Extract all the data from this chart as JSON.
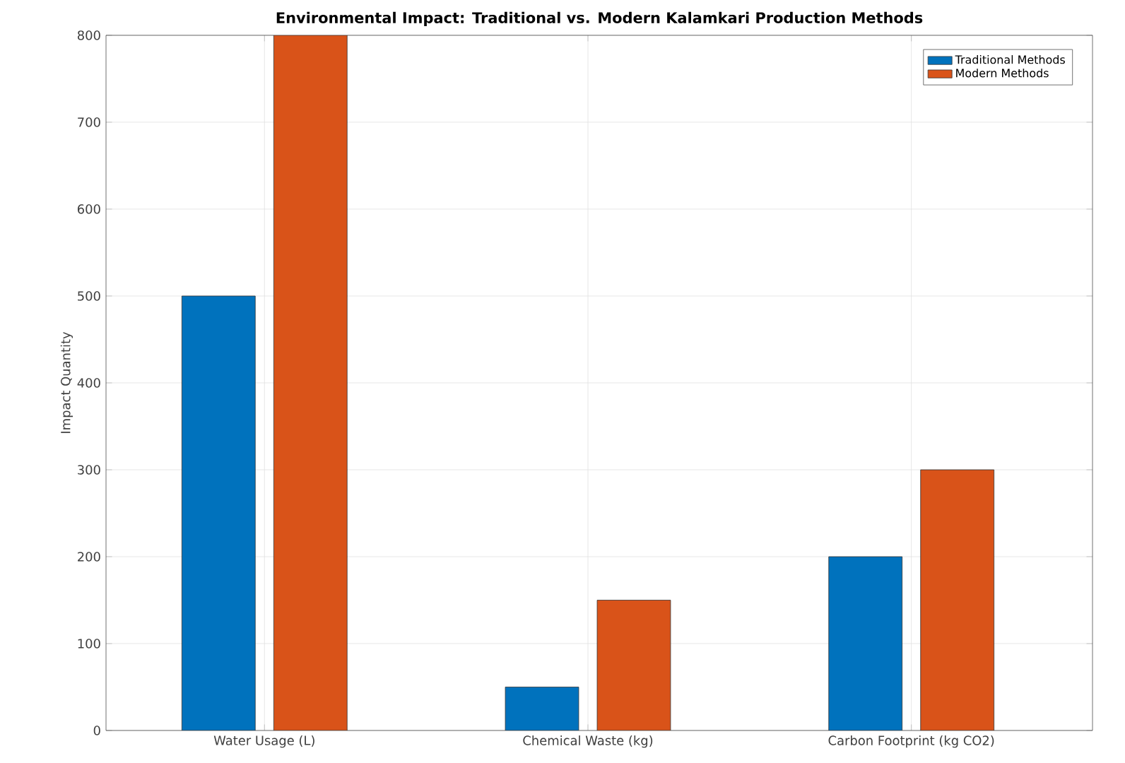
{
  "chart_data": {
    "type": "bar",
    "title": "Environmental Impact: Traditional vs. Modern Kalamkari Production Methods",
    "ylabel": "Impact Quantity",
    "categories": [
      "Water Usage (L)",
      "Chemical Waste (kg)",
      "Carbon Footprint (kg CO2)"
    ],
    "series": [
      {
        "name": "Traditional Methods",
        "color": "#0072bd",
        "values": [
          500,
          50,
          200
        ]
      },
      {
        "name": "Modern Methods",
        "color": "#d95319",
        "values": [
          800,
          150,
          300
        ]
      }
    ],
    "ylim": [
      0,
      800
    ],
    "yticks": [
      0,
      100,
      200,
      300,
      400,
      500,
      600,
      700,
      800
    ],
    "grid": true,
    "legend": "top right"
  }
}
